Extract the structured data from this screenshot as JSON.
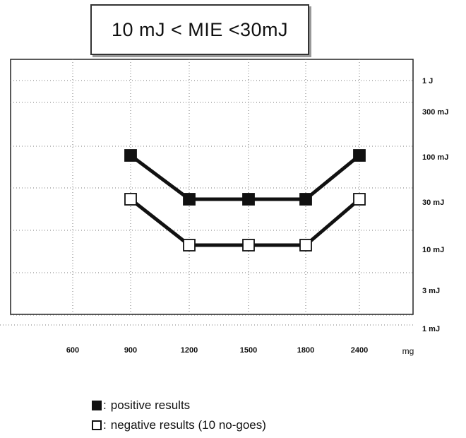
{
  "chart_data": {
    "type": "line",
    "title": "10 mJ < MIE <30mJ",
    "xlabel": "mg",
    "ylabel": "",
    "x_tick_labels": [
      "600",
      "900",
      "1200",
      "1500",
      "1800",
      "2400"
    ],
    "y_tick_labels": [
      "1 J",
      "300 mJ",
      "100 mJ",
      "30 mJ",
      "10 mJ",
      "3 mJ",
      "1 mJ"
    ],
    "y_scale": "log",
    "grid": true,
    "categories": [
      "900",
      "1200",
      "1500",
      "1800",
      "2400"
    ],
    "series": [
      {
        "name": "positive results",
        "marker": "filled-square",
        "values": [
          "100 mJ",
          "30 mJ",
          "30 mJ",
          "30 mJ",
          "100 mJ"
        ]
      },
      {
        "name": "negative results (10 no-goes)",
        "marker": "open-square",
        "values": [
          "30 mJ",
          "10 mJ",
          "10 mJ",
          "10 mJ",
          "30 mJ"
        ]
      }
    ]
  },
  "legend": {
    "separator": ":",
    "items": [
      "positive results",
      "negative results (10 no-goes)"
    ]
  },
  "colors": {
    "line": "#111111",
    "grid": "#777777",
    "background": "#ffffff"
  }
}
